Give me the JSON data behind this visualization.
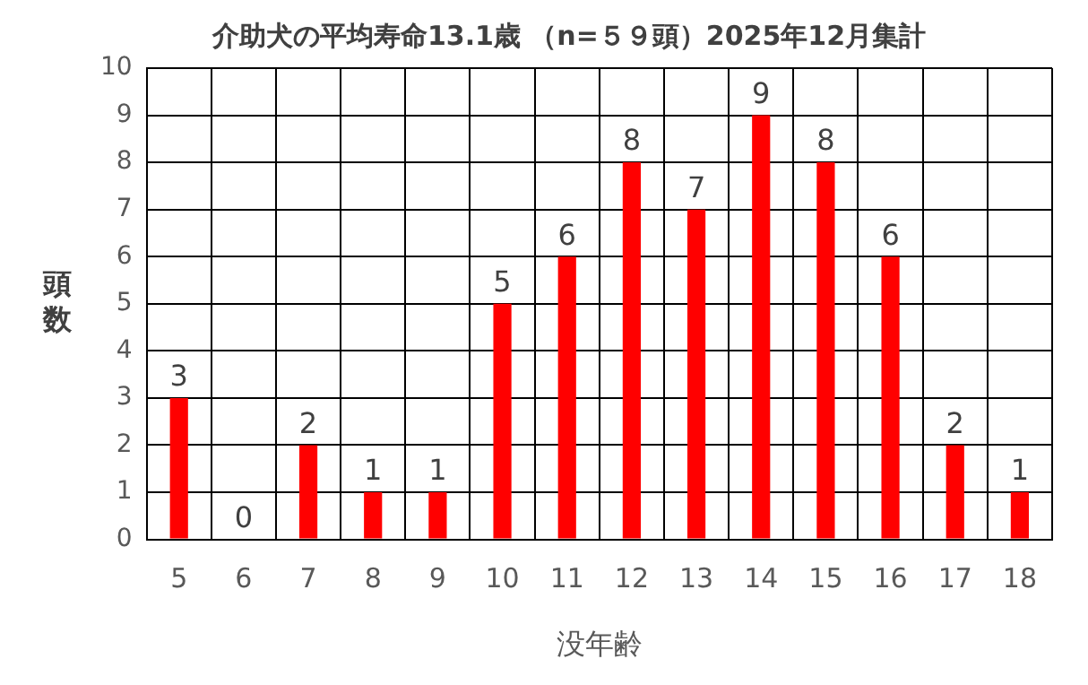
{
  "chart_data": {
    "type": "bar",
    "title": "介助犬の平均寿命13.1歳 （n=５９頭）2025年12月集計",
    "xlabel": "没年齢",
    "ylabel": "頭数",
    "categories": [
      "5",
      "6",
      "7",
      "8",
      "9",
      "10",
      "11",
      "12",
      "13",
      "14",
      "15",
      "16",
      "17",
      "18"
    ],
    "values": [
      3,
      0,
      2,
      1,
      1,
      5,
      6,
      8,
      7,
      9,
      8,
      6,
      2,
      1
    ],
    "color": "#ff0000",
    "ylim": [
      0,
      10
    ],
    "yticks": [
      0,
      1,
      2,
      3,
      4,
      5,
      6,
      7,
      8,
      9,
      10
    ],
    "grid": true,
    "data_labels": true,
    "legend": false
  }
}
